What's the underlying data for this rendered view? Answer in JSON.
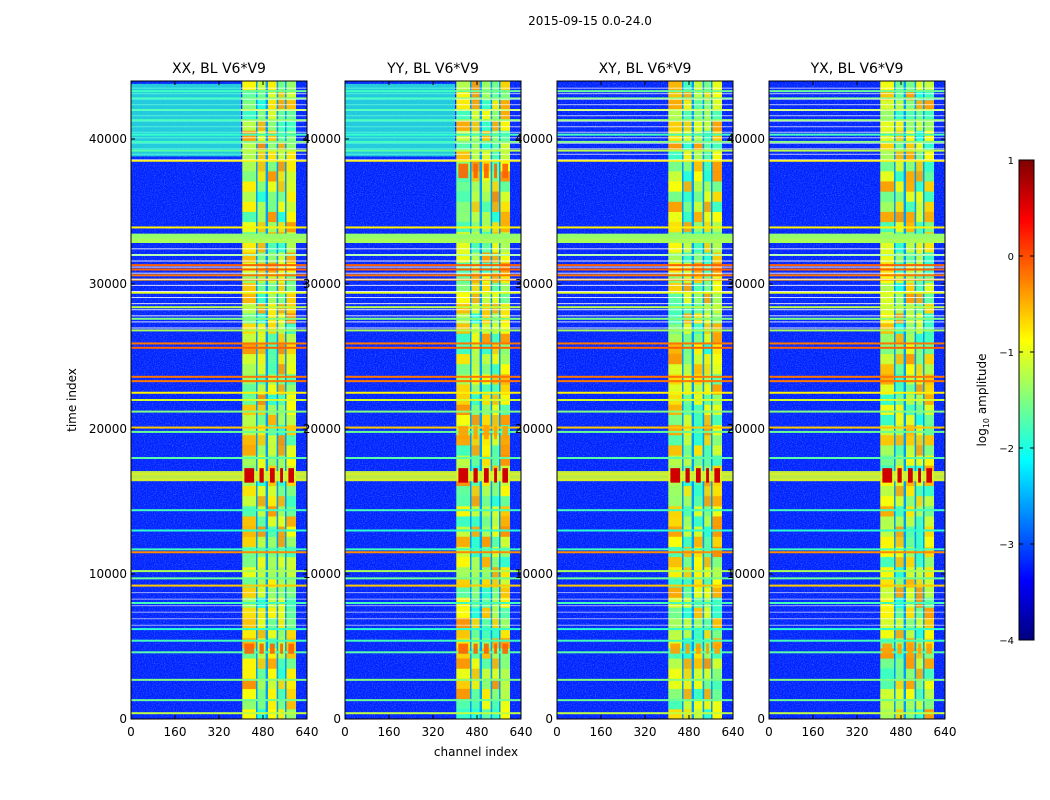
{
  "figure": {
    "title": "2015-09-15 0.0-24.0"
  },
  "chart_data": [
    {
      "type": "heatmap",
      "title": "XX, BL V6*V9",
      "xlabel": "",
      "ylabel": "time index",
      "xlim": [
        0,
        640
      ],
      "ylim": [
        0,
        44000
      ],
      "xticks": [
        0,
        160,
        320,
        480,
        640
      ],
      "yticks": [
        0,
        10000,
        20000,
        30000,
        40000
      ],
      "variant": 0
    },
    {
      "type": "heatmap",
      "title": "YY, BL V6*V9",
      "xlabel": "channel index",
      "ylabel": "",
      "xlim": [
        0,
        640
      ],
      "ylim": [
        0,
        44000
      ],
      "xticks": [
        0,
        160,
        320,
        480,
        640
      ],
      "yticks": [
        0,
        10000,
        20000,
        30000,
        40000
      ],
      "variant": 1
    },
    {
      "type": "heatmap",
      "title": "XY, BL V6*V9",
      "xlabel": "",
      "ylabel": "",
      "xlim": [
        0,
        640
      ],
      "ylim": [
        0,
        44000
      ],
      "xticks": [
        0,
        160,
        320,
        480,
        640
      ],
      "yticks": [
        0,
        10000,
        20000,
        30000,
        40000
      ],
      "variant": 2
    },
    {
      "type": "heatmap",
      "title": "YX, BL V6*V9",
      "xlabel": "",
      "ylabel": "",
      "xlim": [
        0,
        640
      ],
      "ylim": [
        0,
        44000
      ],
      "xticks": [
        0,
        160,
        320,
        480,
        640
      ],
      "yticks": [
        0,
        10000,
        20000,
        30000,
        40000
      ],
      "variant": 3
    }
  ],
  "colorbar": {
    "label_main": "log",
    "label_sub": "10",
    "label_rest": " amplitude",
    "range": [
      -4,
      1
    ],
    "ticks": [
      1,
      0,
      -1,
      -2,
      -3,
      -4
    ],
    "tick_labels": [
      "1",
      "0",
      "−1",
      "−2",
      "−3",
      "−4"
    ],
    "colormap": "jet"
  },
  "colors": {
    "jet_stops": [
      "#00007f",
      "#0000ff",
      "#00ffff",
      "#ffff00",
      "#ff0000",
      "#7f0000"
    ]
  }
}
